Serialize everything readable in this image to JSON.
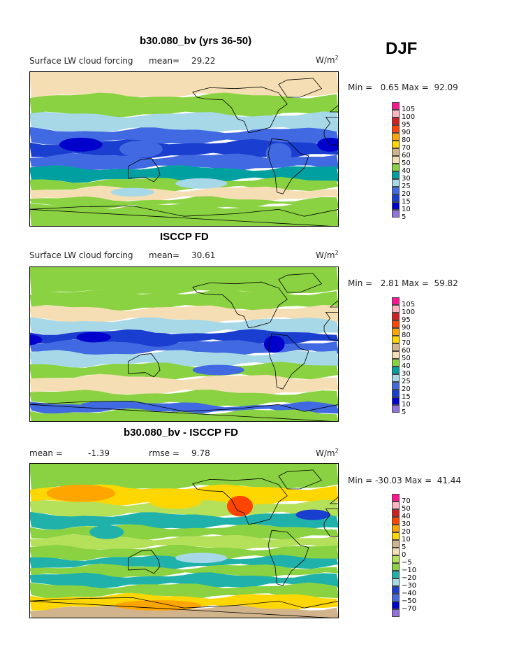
{
  "season": "DJF",
  "colors": {
    "abs_scale": [
      "#9370db",
      "#0000cd",
      "#1a3ecf",
      "#4169e1",
      "#a6d8e8",
      "#00a0a0",
      "#8ad241",
      "#f5deb3",
      "#d2b48c",
      "#ffd700",
      "#ffa500",
      "#ff4500",
      "#d02020",
      "#ffb6c1",
      "#ff1493"
    ],
    "diff_scale": [
      "#9370db",
      "#0000cd",
      "#4169e1",
      "#1a3ecf",
      "#a6d8e8",
      "#20b2aa",
      "#8ad241",
      "#b4e05a",
      "#f5deb3",
      "#d2b48c",
      "#ffd700",
      "#ffa500",
      "#ff4500",
      "#d02020",
      "#ffb6c1",
      "#ff1493"
    ]
  },
  "panels": [
    {
      "title": "b30.080_bv (yrs 36-50)",
      "variable": "Surface LW cloud forcing",
      "mean_label": "mean=",
      "mean_value": "29.22",
      "units": "W/m",
      "units_sup": "2",
      "min_max": "Min =   0.65 Max =  92.09",
      "legend": [
        "105",
        "100",
        "95",
        "90",
        "80",
        "70",
        "60",
        "50",
        "40",
        "30",
        "25",
        "20",
        "15",
        "10",
        "5"
      ]
    },
    {
      "title": "ISCCP FD",
      "variable": "Surface LW cloud forcing",
      "mean_label": "mean=",
      "mean_value": "30.61",
      "units": "W/m",
      "units_sup": "2",
      "min_max": "Min =   2.81 Max =  59.82",
      "legend": [
        "105",
        "100",
        "95",
        "90",
        "80",
        "70",
        "60",
        "50",
        "40",
        "30",
        "25",
        "20",
        "15",
        "10",
        "5"
      ]
    },
    {
      "title": "b30.080_bv - ISCCP FD",
      "mean_label": "mean =",
      "mean_value": "-1.39",
      "rmse_label": "rmse =",
      "rmse_value": "9.78",
      "units": "W/m",
      "units_sup": "2",
      "min_max": "Min = -30.03 Max =  41.44",
      "legend": [
        "70",
        "50",
        "40",
        "30",
        "20",
        "10",
        "5",
        "0",
        "−5",
        "−10",
        "−20",
        "−30",
        "−40",
        "−50",
        "−70"
      ]
    }
  ],
  "chart_data": [
    {
      "type": "heatmap",
      "title": "b30.080_bv (yrs 36-50)",
      "variable": "Surface LW cloud forcing",
      "units": "W/m2",
      "season": "DJF",
      "mean": 29.22,
      "min": 0.65,
      "max": 92.09,
      "contour_levels": [
        5,
        10,
        15,
        20,
        25,
        30,
        40,
        50,
        60,
        70,
        80,
        90,
        95,
        100,
        105
      ]
    },
    {
      "type": "heatmap",
      "title": "ISCCP FD",
      "variable": "Surface LW cloud forcing",
      "units": "W/m2",
      "season": "DJF",
      "mean": 30.61,
      "min": 2.81,
      "max": 59.82,
      "contour_levels": [
        5,
        10,
        15,
        20,
        25,
        30,
        40,
        50,
        60,
        70,
        80,
        90,
        95,
        100,
        105
      ]
    },
    {
      "type": "heatmap",
      "title": "b30.080_bv - ISCCP FD",
      "units": "W/m2",
      "season": "DJF",
      "mean": -1.39,
      "rmse": 9.78,
      "min": -30.03,
      "max": 41.44,
      "contour_levels": [
        -70,
        -50,
        -40,
        -30,
        -20,
        -10,
        -5,
        0,
        5,
        10,
        20,
        30,
        40,
        50,
        70
      ]
    }
  ]
}
